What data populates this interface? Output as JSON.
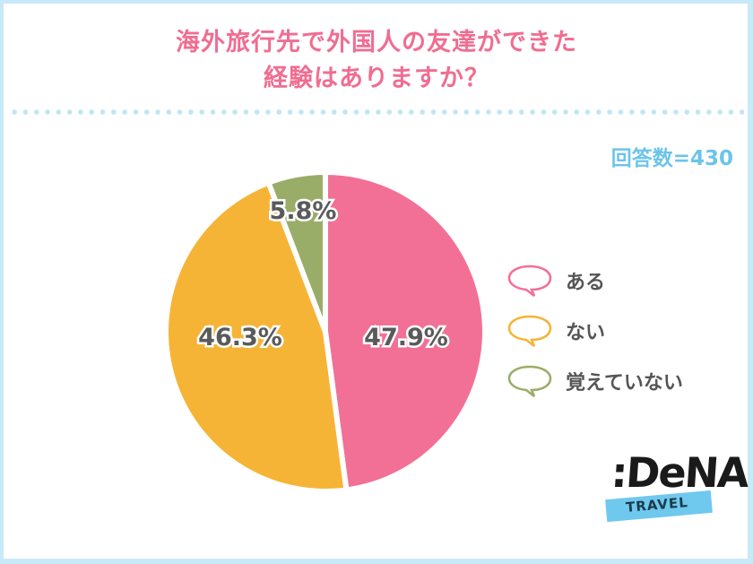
{
  "title": {
    "line1": "海外旅行先で外国人の友達ができた",
    "line2": "経験はありますか？"
  },
  "respondents": "回答数=430",
  "legend": [
    {
      "label": "ある",
      "color": "#f27096"
    },
    {
      "label": "ない",
      "color": "#f6b436"
    },
    {
      "label": "覚えていない",
      "color": "#9aad68"
    }
  ],
  "slice_labels": {
    "aru": "47.9%",
    "nai": "46.3%",
    "oboete": "5.8%"
  },
  "logo": {
    "brand": ":DeNA",
    "sub": "TRAVEL"
  },
  "colors": {
    "title": "#f06d91",
    "count": "#6cc4ea",
    "frame": "#c8e9f8"
  },
  "chart_data": {
    "type": "pie",
    "title": "海外旅行先で外国人の友達ができた経験はありますか？",
    "subtitle": "回答数=430",
    "categories": [
      "ある",
      "ない",
      "覚えていない"
    ],
    "values": [
      47.9,
      46.3,
      5.8
    ],
    "unit": "%",
    "colors": [
      "#f27096",
      "#f6b436",
      "#9aad68"
    ],
    "start_angle": "12 o'clock",
    "direction": "clockwise",
    "legend_position": "right"
  }
}
